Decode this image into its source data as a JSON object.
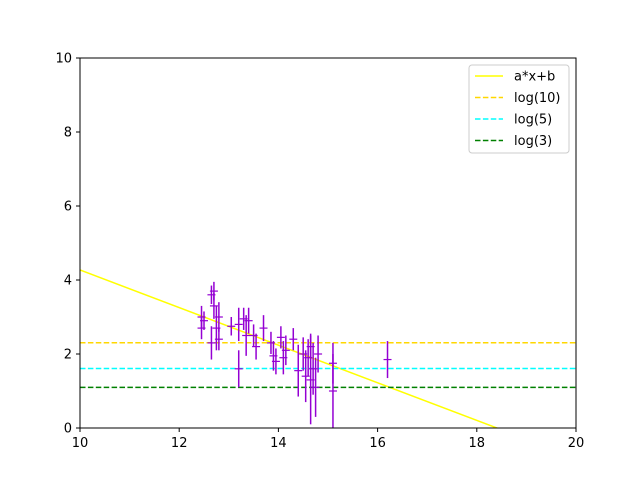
{
  "chart_data": {
    "type": "scatter",
    "xlim": [
      10,
      20
    ],
    "ylim": [
      0,
      10
    ],
    "x_ticks": [
      10,
      12,
      14,
      16,
      18,
      20
    ],
    "y_ticks": [
      0,
      2,
      4,
      6,
      8,
      10
    ],
    "x_tick_labels": [
      "10",
      "12",
      "14",
      "16",
      "18",
      "20"
    ],
    "y_tick_labels": [
      "0",
      "2",
      "4",
      "6",
      "8",
      "10"
    ],
    "grid": false,
    "legend_position": "top-right",
    "points": {
      "color": "#9400d3",
      "marker": "+",
      "data": [
        {
          "x": 12.45,
          "y": 3.0,
          "yerr": 0.3
        },
        {
          "x": 12.45,
          "y": 2.7,
          "yerr": 0.3
        },
        {
          "x": 12.5,
          "y": 2.9,
          "yerr": 0.25
        },
        {
          "x": 12.65,
          "y": 3.6,
          "yerr": 0.25
        },
        {
          "x": 12.7,
          "y": 3.7,
          "yerr": 0.25
        },
        {
          "x": 12.7,
          "y": 3.3,
          "yerr": 0.35
        },
        {
          "x": 12.75,
          "y": 2.7,
          "yerr": 0.6
        },
        {
          "x": 12.65,
          "y": 2.3,
          "yerr": 0.45
        },
        {
          "x": 12.8,
          "y": 3.0,
          "yerr": 0.4
        },
        {
          "x": 12.8,
          "y": 2.4,
          "yerr": 0.3
        },
        {
          "x": 13.05,
          "y": 2.75,
          "yerr": 0.25
        },
        {
          "x": 13.2,
          "y": 2.8,
          "yerr": 0.45
        },
        {
          "x": 13.2,
          "y": 1.6,
          "yerr": 0.5
        },
        {
          "x": 13.3,
          "y": 2.95,
          "yerr": 0.3
        },
        {
          "x": 13.35,
          "y": 2.5,
          "yerr": 0.55
        },
        {
          "x": 13.4,
          "y": 2.9,
          "yerr": 0.35
        },
        {
          "x": 13.5,
          "y": 2.5,
          "yerr": 0.3
        },
        {
          "x": 13.55,
          "y": 2.2,
          "yerr": 0.35
        },
        {
          "x": 13.7,
          "y": 2.7,
          "yerr": 0.35
        },
        {
          "x": 13.85,
          "y": 2.3,
          "yerr": 0.3
        },
        {
          "x": 13.9,
          "y": 1.95,
          "yerr": 0.4
        },
        {
          "x": 13.95,
          "y": 1.8,
          "yerr": 0.35
        },
        {
          "x": 14.05,
          "y": 2.45,
          "yerr": 0.3
        },
        {
          "x": 14.1,
          "y": 1.9,
          "yerr": 0.45
        },
        {
          "x": 14.15,
          "y": 2.1,
          "yerr": 0.4
        },
        {
          "x": 14.3,
          "y": 2.4,
          "yerr": 0.3
        },
        {
          "x": 14.4,
          "y": 1.55,
          "yerr": 0.7
        },
        {
          "x": 14.5,
          "y": 2.0,
          "yerr": 0.45
        },
        {
          "x": 14.55,
          "y": 1.4,
          "yerr": 0.7
        },
        {
          "x": 14.6,
          "y": 1.9,
          "yerr": 0.5
        },
        {
          "x": 14.65,
          "y": 2.2,
          "yerr": 0.35
        },
        {
          "x": 14.65,
          "y": 1.3,
          "yerr": 1.2
        },
        {
          "x": 14.7,
          "y": 1.6,
          "yerr": 0.7
        },
        {
          "x": 14.75,
          "y": 1.1,
          "yerr": 0.8
        },
        {
          "x": 14.8,
          "y": 2.0,
          "yerr": 0.5
        },
        {
          "x": 15.1,
          "y": 1.75,
          "yerr": 0.55
        },
        {
          "x": 15.1,
          "y": 1.0,
          "yerr": 1.0
        },
        {
          "x": 16.2,
          "y": 1.85,
          "yerr": 0.5
        }
      ]
    },
    "series": [
      {
        "name": "a*x+b",
        "kind": "fit",
        "style": "solid",
        "color": "#ffff00",
        "slope": -0.508,
        "intercept": 9.35
      },
      {
        "name": "log(10)",
        "kind": "hline",
        "style": "dashed",
        "color": "#ffd700",
        "value": 2.302585
      },
      {
        "name": "log(5)",
        "kind": "hline",
        "style": "dashed",
        "color": "#00ffff",
        "value": 1.609438
      },
      {
        "name": "log(3)",
        "kind": "hline",
        "style": "dashed",
        "color": "#008000",
        "value": 1.098612
      }
    ]
  }
}
